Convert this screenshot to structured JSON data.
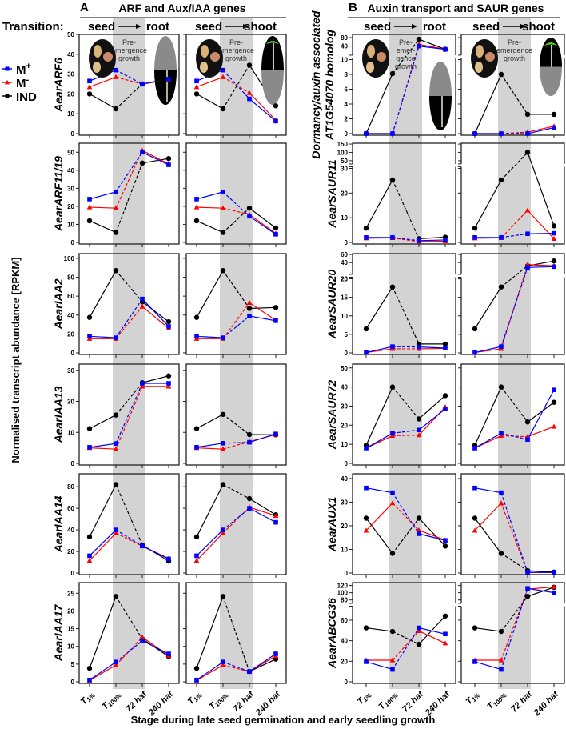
{
  "header": {
    "transition_label": "Transition:",
    "panel_A_letter": "A",
    "panel_A_title": "ARF and Aux/IAA genes",
    "panel_B_letter": "B",
    "panel_B_title": "Auxin transport and SAUR genes",
    "seed": "seed",
    "root": "root",
    "shoot": "shoot",
    "pre_emergence_lines": [
      "Pre-",
      "emergence",
      "growth"
    ],
    "pre_emergence_lines_narrow": [
      "Pre-",
      "emer-",
      "gence",
      "growth"
    ]
  },
  "image_labels": {
    "shoot": "Shoot",
    "root": "Root"
  },
  "legend": [
    {
      "key": "M+",
      "base": "M",
      "sup": "+",
      "color": "#0000ff",
      "marker": "square"
    },
    {
      "key": "M-",
      "base": "M",
      "sup": "-",
      "color": "#ff0000",
      "marker": "triangle"
    },
    {
      "key": "IND",
      "base": "IND",
      "sup": "",
      "color": "#000000",
      "marker": "circle"
    }
  ],
  "y_axis_title": "Normalised transcript abundance [RPKM]",
  "x_axis_title": "Stage during late seed germination and early seedling growth",
  "chart_data": {
    "type": "line",
    "categories": [
      "T1%",
      "T100%",
      "72 hat",
      "240 hat"
    ],
    "shaded_region": [
      "T100%",
      "72 hat"
    ],
    "dashed_segment": [
      "T100%",
      "72 hat"
    ],
    "transitions": [
      "root",
      "shoot"
    ],
    "genes": [
      {
        "column": "A",
        "label": [
          "AearARF6"
        ],
        "italic": true,
        "axis": {
          "lower": {
            "range": [
              0,
              50
            ],
            "ticks": [
              0,
              10,
              20,
              30,
              40,
              50
            ]
          }
        },
        "root": {
          "M+": [
            26.5,
            32,
            25,
            27.5
          ],
          "M-": [
            23.5,
            28.5,
            25,
            27
          ],
          "IND": [
            20,
            12.5,
            25,
            27.5
          ]
        },
        "shoot": {
          "M+": [
            26.5,
            32,
            17.5,
            6.3
          ],
          "M-": [
            23.5,
            28.5,
            20.5,
            6.8
          ],
          "IND": [
            20,
            12.5,
            34.5,
            14
          ]
        }
      },
      {
        "column": "A",
        "label": [
          "AearARF11/19"
        ],
        "italic": true,
        "axis": {
          "lower": {
            "range": [
              0,
              55
            ],
            "ticks": [
              0,
              10,
              20,
              30,
              40,
              50
            ]
          }
        },
        "root": {
          "M+": [
            24,
            28,
            50,
            43
          ],
          "M-": [
            19.5,
            19,
            51,
            43.5
          ],
          "IND": [
            12,
            5.5,
            44,
            46.5
          ]
        },
        "shoot": {
          "M+": [
            24,
            28,
            14.5,
            4.5
          ],
          "M-": [
            19.5,
            19,
            15.5,
            5
          ],
          "IND": [
            12,
            5.5,
            19,
            8
          ]
        }
      },
      {
        "column": "A",
        "label": [
          "AearIAA2"
        ],
        "italic": true,
        "axis": {
          "lower": {
            "range": [
              0,
              105
            ],
            "ticks": [
              0,
              20,
              40,
              60,
              80,
              100
            ]
          }
        },
        "root": {
          "M+": [
            17.5,
            16,
            57,
            28
          ],
          "M-": [
            15,
            15,
            49,
            26
          ],
          "IND": [
            37.5,
            87,
            54,
            33
          ]
        },
        "shoot": {
          "M+": [
            17.5,
            16,
            39,
            34
          ],
          "M-": [
            15,
            15,
            53,
            34.5
          ],
          "IND": [
            37.5,
            87,
            47,
            48
          ]
        }
      },
      {
        "column": "A",
        "label": [
          "AearIAA13"
        ],
        "italic": true,
        "axis": {
          "lower": {
            "range": [
              0,
              32
            ],
            "ticks": [
              0,
              10,
              20,
              30
            ]
          }
        },
        "root": {
          "M+": [
            5.2,
            6.4,
            25.8,
            25.8
          ],
          "M-": [
            5,
            4.6,
            24.8,
            24.8
          ],
          "IND": [
            11.2,
            15.6,
            26,
            28.2
          ]
        },
        "shoot": {
          "M+": [
            5.2,
            6.5,
            6.8,
            9.5
          ],
          "M-": [
            5,
            4.6,
            7,
            9.3
          ],
          "IND": [
            11.2,
            15.8,
            9.3,
            9.2
          ]
        }
      },
      {
        "column": "A",
        "label": [
          "AearIAA14"
        ],
        "italic": true,
        "axis": {
          "lower": {
            "range": [
              0,
              92
            ],
            "ticks": [
              0,
              20,
              40,
              60,
              80
            ]
          }
        },
        "root": {
          "M+": [
            16,
            40,
            25,
            13
          ],
          "M-": [
            11.5,
            37,
            25,
            13.5
          ],
          "IND": [
            33.5,
            82,
            26,
            11
          ]
        },
        "shoot": {
          "M+": [
            16,
            40,
            60,
            47
          ],
          "M-": [
            11.5,
            37,
            61,
            53
          ],
          "IND": [
            33.5,
            82,
            69,
            54
          ]
        }
      },
      {
        "column": "A",
        "label": [
          "AearIAA17"
        ],
        "italic": true,
        "axis": {
          "lower": {
            "range": [
              0,
              28
            ],
            "ticks": [
              0,
              5,
              10,
              15,
              20,
              25
            ]
          }
        },
        "root": {
          "M+": [
            0.5,
            5.6,
            11.6,
            7.9
          ],
          "M-": [
            0.4,
            4.7,
            12.6,
            7.4
          ],
          "IND": [
            3.8,
            24.1,
            12.1,
            7.1
          ]
        },
        "shoot": {
          "M+": [
            0.5,
            5.6,
            2.9,
            7.9
          ],
          "M-": [
            0.4,
            4.7,
            2.9,
            7.3
          ],
          "IND": [
            3.8,
            24.1,
            2.9,
            6.4
          ]
        }
      },
      {
        "column": "B",
        "label": [
          "Dormancy/auxin associated",
          "AT1G54070 homolog"
        ],
        "italic": false,
        "axis": {
          "lower": {
            "range": [
              0,
              10
            ],
            "ticks": [
              0,
              2,
              4,
              6,
              8,
              10
            ]
          },
          "upper": {
            "range": [
              5,
              95
            ],
            "ticks": [
              40,
              80
            ]
          }
        },
        "root": {
          "M+": [
            0,
            0,
            40,
            25
          ],
          "M-": [
            0,
            0,
            48,
            25
          ],
          "IND": [
            0,
            8.1,
            72,
            25
          ]
        },
        "shoot": {
          "M+": [
            0,
            0,
            0,
            0.8
          ],
          "M-": [
            0,
            0,
            0.2,
            1
          ],
          "IND": [
            0,
            8,
            2.6,
            2.6
          ]
        }
      },
      {
        "column": "B",
        "label": [
          "AearSAUR11"
        ],
        "italic": true,
        "axis": {
          "lower": {
            "range": [
              0,
              30
            ],
            "ticks": [
              0,
              10,
              20,
              30
            ]
          },
          "upper": {
            "range": [
              40,
              155
            ],
            "ticks": [
              50,
              100,
              150
            ]
          }
        },
        "root": {
          "M+": [
            2,
            2,
            0.7,
            1
          ],
          "M-": [
            1.7,
            1.8,
            0.3,
            0.5
          ],
          "IND": [
            5.8,
            25.3,
            1.5,
            2.1
          ]
        },
        "shoot": {
          "M+": [
            2,
            2,
            3.5,
            3.7
          ],
          "M-": [
            1.7,
            1.8,
            13,
            1.5
          ],
          "IND": [
            5.8,
            25.3,
            100,
            6.7
          ]
        }
      },
      {
        "column": "B",
        "label": [
          "AearSAUR20"
        ],
        "italic": true,
        "axis": {
          "lower": {
            "range": [
              0,
              20
            ],
            "ticks": [
              0,
              5,
              10,
              15,
              20
            ]
          },
          "upper": {
            "range": [
              15,
              62
            ],
            "ticks": [
              20,
              40,
              60
            ]
          }
        },
        "root": {
          "M+": [
            0.1,
            1.7,
            1.6,
            1.3
          ],
          "M-": [
            0.1,
            1.1,
            1.1,
            1.2
          ],
          "IND": [
            6.5,
            17.8,
            2.4,
            2.4
          ]
        },
        "shoot": {
          "M+": [
            0.1,
            1.7,
            28,
            30
          ],
          "M-": [
            0.1,
            1.1,
            35,
            32
          ],
          "IND": [
            6.5,
            17.8,
            32,
            44
          ]
        }
      },
      {
        "column": "B",
        "label": [
          "AearSAUR72"
        ],
        "italic": true,
        "axis": {
          "lower": {
            "range": [
              0,
              52
            ],
            "ticks": [
              0,
              10,
              20,
              30,
              40,
              50
            ]
          }
        },
        "root": {
          "M+": [
            8,
            15.8,
            17.5,
            28.5
          ],
          "M-": [
            8,
            14.5,
            14.8,
            29.5
          ],
          "IND": [
            9.5,
            40,
            23.3,
            35.5
          ]
        },
        "shoot": {
          "M+": [
            8,
            15.8,
            12.5,
            38.5
          ],
          "M-": [
            8,
            14.5,
            14,
            19.3
          ],
          "IND": [
            9.5,
            40,
            21.7,
            32
          ]
        }
      },
      {
        "column": "B",
        "label": [
          "AearAUX1"
        ],
        "italic": true,
        "axis": {
          "lower": {
            "range": [
              0,
              42
            ],
            "ticks": [
              0,
              10,
              20,
              30,
              40
            ]
          }
        },
        "root": {
          "M+": [
            36,
            34,
            16.6,
            13.8
          ],
          "M-": [
            18,
            29.6,
            18.1,
            13.9
          ],
          "IND": [
            23.2,
            8.3,
            23.2,
            11.4
          ]
        },
        "shoot": {
          "M+": [
            36,
            34,
            0.3,
            0.3
          ],
          "M-": [
            18,
            29.6,
            0.2,
            0.2
          ],
          "IND": [
            23.2,
            8.3,
            1,
            0.4
          ]
        }
      },
      {
        "column": "B",
        "label": [
          "AearABCG36"
        ],
        "italic": true,
        "axis": {
          "lower": {
            "range": [
              0,
              72
            ],
            "ticks": [
              0,
              20,
              40,
              60
            ]
          },
          "upper": {
            "range": [
              75,
              128
            ],
            "ticks": [
              80,
              100,
              120
            ]
          }
        },
        "root": {
          "M+": [
            19.5,
            12,
            52.5,
            46.5
          ],
          "M-": [
            21,
            21,
            49.5,
            37.5
          ],
          "IND": [
            52.5,
            49,
            36.5,
            64
          ]
        },
        "shoot": {
          "M+": [
            19.5,
            12,
            112,
            100
          ],
          "M-": [
            21,
            21,
            110,
            116
          ],
          "IND": [
            52.5,
            49,
            90,
            115
          ]
        }
      }
    ]
  }
}
